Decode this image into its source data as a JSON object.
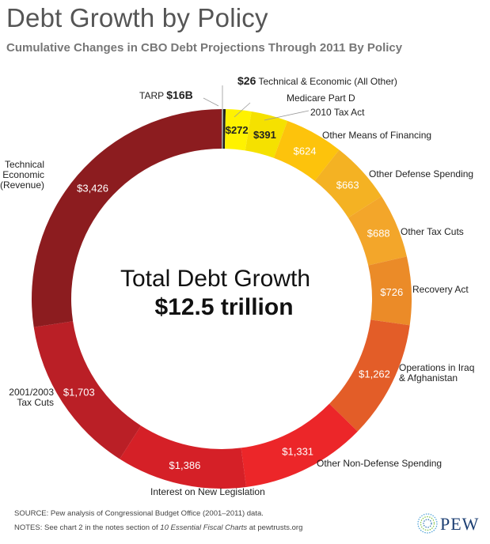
{
  "title": "Debt Growth by Policy",
  "subtitle": "Cumulative Changes in CBO Debt Projections Through 2011 By Policy",
  "center": {
    "line1": "Total Debt Growth",
    "line2": "$12.5 trillion"
  },
  "chart_data": {
    "type": "pie",
    "variant": "donut",
    "unit": "billions of dollars",
    "slices": [
      {
        "label": "TARP",
        "value": 16,
        "display": "$16B",
        "color": "#a8a8a8"
      },
      {
        "label": "Technical & Economic (All Other)",
        "value": 26,
        "display": "$26",
        "color": "#222222"
      },
      {
        "label": "Medicare Part D",
        "value": 272,
        "display": "$272",
        "color": "#fff200"
      },
      {
        "label": "2010 Tax Act",
        "value": 391,
        "display": "$391",
        "color": "#f5e100"
      },
      {
        "label": "Other Means of Financing",
        "value": 624,
        "display": "$624",
        "color": "#fdc30c"
      },
      {
        "label": "Other Defense Spending",
        "value": 663,
        "display": "$663",
        "color": "#f4b223"
      },
      {
        "label": "Other Tax Cuts",
        "value": 688,
        "display": "$688",
        "color": "#f3a62a"
      },
      {
        "label": "Recovery Act",
        "value": 726,
        "display": "$726",
        "color": "#eb8b28"
      },
      {
        "label": "Operations in Iraq & Afghanistan",
        "value": 1262,
        "display": "$1,262",
        "color": "#e35d28"
      },
      {
        "label": "Other Non-Defense Spending",
        "value": 1331,
        "display": "$1,331",
        "color": "#ec2629"
      },
      {
        "label": "Interest on New Legislation",
        "value": 1386,
        "display": "$1,386",
        "color": "#d52027"
      },
      {
        "label": "2001/2003 Tax Cuts",
        "value": 1703,
        "display": "$1,703",
        "color": "#ba1f26"
      },
      {
        "label": "Technical & Economic (Revenue)",
        "value": 3426,
        "display": "$3,426",
        "color": "#8c1c1f"
      }
    ]
  },
  "outer_labels": {
    "tarp_name": "TARP",
    "tarp_value": "$16B",
    "tech_value": "$26",
    "tech_name": "Technical & Economic (All Other)",
    "medicare": "Medicare Part D",
    "tax_act_2010": "2010 Tax Act",
    "other_means": "Other Means of Financing",
    "other_defense": "Other Defense Spending",
    "other_tax_cuts": "Other Tax Cuts",
    "recovery": "Recovery Act",
    "iraq_line1": "Operations in Iraq",
    "iraq_line2": "& Afghanistan",
    "non_defense": "Other Non-Defense Spending",
    "interest": "Interest on New Legislation",
    "tax_cuts_line1": "2001/2003",
    "tax_cuts_line2": "Tax Cuts",
    "tech_rev_line1": "Technical",
    "tech_rev_line2": "& Economic",
    "tech_rev_line3": "(Revenue)"
  },
  "footer": {
    "source": "SOURCE: Pew analysis of Congressional Budget Office (2001–2011) data.",
    "notes_prefix": "NOTES: See chart 2 in the notes section of",
    "notes_italic": "10 Essential Fiscal Charts",
    "notes_suffix": "at pewtrusts.org"
  },
  "logo": {
    "text": "PEW"
  }
}
